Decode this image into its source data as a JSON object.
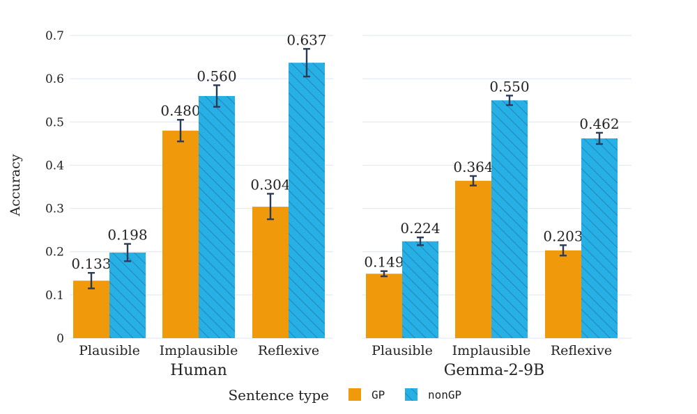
{
  "chart_data": {
    "type": "bar",
    "ylabel": "Accuracy",
    "ylim": [
      0,
      0.7
    ],
    "yticks": [
      "0",
      "0.1",
      "0.2",
      "0.3",
      "0.4",
      "0.5",
      "0.6",
      "0.7"
    ],
    "grid": true,
    "legend": {
      "title": "Sentence type",
      "placement": "bottom",
      "entries": [
        "GP",
        "nonGP"
      ]
    },
    "colors": {
      "GP": "#f0990a",
      "nonGP": "#27b0e6",
      "hatch": "#1f7aa8",
      "error": "#2b3a55"
    },
    "panels": [
      {
        "title": "Human",
        "categories": [
          "Plausible",
          "Implausible",
          "Reflexive"
        ],
        "series": [
          {
            "name": "GP",
            "values": [
              0.133,
              0.48,
              0.304
            ],
            "labels": [
              "0.133",
              "0.480",
              "0.304"
            ],
            "err_low": [
              0.115,
              0.455,
              0.275
            ],
            "err_high": [
              0.151,
              0.505,
              0.334
            ]
          },
          {
            "name": "nonGP",
            "values": [
              0.198,
              0.56,
              0.637
            ],
            "labels": [
              "0.198",
              "0.560",
              "0.637"
            ],
            "err_low": [
              0.178,
              0.535,
              0.605
            ],
            "err_high": [
              0.218,
              0.585,
              0.669
            ]
          }
        ]
      },
      {
        "title": "Gemma-2-9B",
        "categories": [
          "Plausible",
          "Implausible",
          "Reflexive"
        ],
        "series": [
          {
            "name": "GP",
            "values": [
              0.149,
              0.364,
              0.203
            ],
            "labels": [
              "0.149",
              "0.364",
              "0.203"
            ],
            "err_low": [
              0.143,
              0.353,
              0.191
            ],
            "err_high": [
              0.155,
              0.375,
              0.215
            ]
          },
          {
            "name": "nonGP",
            "values": [
              0.224,
              0.55,
              0.462
            ],
            "labels": [
              "0.224",
              "0.550",
              "0.462"
            ],
            "err_low": [
              0.215,
              0.539,
              0.449
            ],
            "err_high": [
              0.233,
              0.561,
              0.475
            ]
          }
        ]
      }
    ]
  }
}
